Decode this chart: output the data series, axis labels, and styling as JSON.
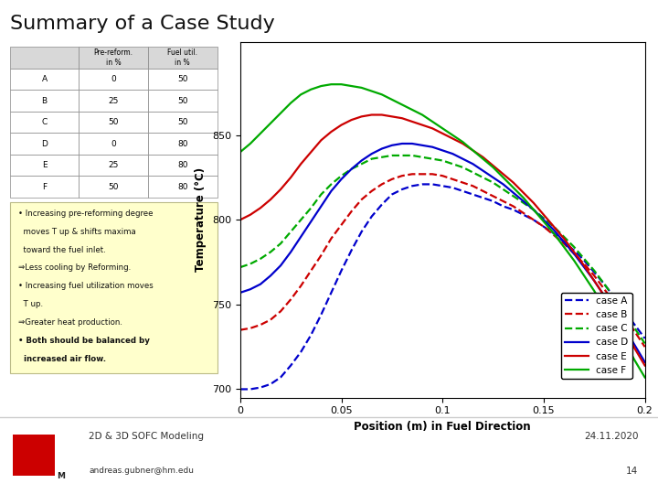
{
  "title": "Summary of a Case Study",
  "title_fontsize": 16,
  "background_color": "#ffffff",
  "slide_footer_left": "2D & 3D SOFC Modeling",
  "slide_footer_email": "andreas.gubner@hm.edu",
  "slide_footer_date": "24.11.2020",
  "slide_footer_page": "14",
  "table_rows": [
    [
      "A",
      "0",
      "50"
    ],
    [
      "B",
      "25",
      "50"
    ],
    [
      "C",
      "50",
      "50"
    ],
    [
      "D",
      "0",
      "80"
    ],
    [
      "E",
      "25",
      "80"
    ],
    [
      "F",
      "50",
      "80"
    ]
  ],
  "chart": {
    "xlabel": "Position (m) in Fuel Direction",
    "ylabel": "Temperature (°C)",
    "xlim": [
      0,
      0.2
    ],
    "ylim": [
      695,
      905
    ],
    "yticks": [
      700,
      750,
      800,
      850
    ],
    "xticks": [
      0,
      0.05,
      0.1,
      0.15,
      0.2
    ],
    "cases": [
      {
        "label": "case A",
        "color": "#0000cc",
        "linestyle": "--",
        "x": [
          0.0,
          0.005,
          0.01,
          0.015,
          0.02,
          0.025,
          0.03,
          0.035,
          0.04,
          0.045,
          0.05,
          0.055,
          0.06,
          0.065,
          0.07,
          0.075,
          0.08,
          0.085,
          0.09,
          0.095,
          0.1,
          0.105,
          0.11,
          0.115,
          0.12,
          0.125,
          0.13,
          0.135,
          0.14,
          0.145,
          0.15,
          0.155,
          0.16,
          0.165,
          0.17,
          0.175,
          0.18,
          0.185,
          0.19,
          0.195,
          0.2
        ],
        "y": [
          700,
          700,
          701,
          703,
          707,
          714,
          722,
          732,
          744,
          757,
          770,
          782,
          793,
          802,
          809,
          815,
          818,
          820,
          821,
          821,
          820,
          819,
          817,
          815,
          813,
          811,
          808,
          806,
          803,
          800,
          796,
          792,
          787,
          782,
          776,
          769,
          762,
          754,
          746,
          738,
          730
        ]
      },
      {
        "label": "case B",
        "color": "#cc0000",
        "linestyle": "--",
        "x": [
          0.0,
          0.005,
          0.01,
          0.015,
          0.02,
          0.025,
          0.03,
          0.035,
          0.04,
          0.045,
          0.05,
          0.055,
          0.06,
          0.065,
          0.07,
          0.075,
          0.08,
          0.085,
          0.09,
          0.095,
          0.1,
          0.105,
          0.11,
          0.115,
          0.12,
          0.125,
          0.13,
          0.135,
          0.14,
          0.145,
          0.15,
          0.155,
          0.16,
          0.165,
          0.17,
          0.175,
          0.18,
          0.185,
          0.19,
          0.195,
          0.2
        ],
        "y": [
          735,
          736,
          738,
          741,
          746,
          753,
          761,
          770,
          779,
          789,
          797,
          805,
          812,
          817,
          821,
          824,
          826,
          827,
          827,
          827,
          826,
          824,
          822,
          820,
          817,
          814,
          811,
          808,
          804,
          800,
          796,
          791,
          786,
          780,
          774,
          767,
          759,
          751,
          743,
          734,
          725
        ]
      },
      {
        "label": "case C",
        "color": "#00aa00",
        "linestyle": "--",
        "x": [
          0.0,
          0.005,
          0.01,
          0.015,
          0.02,
          0.025,
          0.03,
          0.035,
          0.04,
          0.045,
          0.05,
          0.055,
          0.06,
          0.065,
          0.07,
          0.075,
          0.08,
          0.085,
          0.09,
          0.095,
          0.1,
          0.105,
          0.11,
          0.115,
          0.12,
          0.125,
          0.13,
          0.135,
          0.14,
          0.145,
          0.15,
          0.155,
          0.16,
          0.165,
          0.17,
          0.175,
          0.18,
          0.185,
          0.19,
          0.195,
          0.2
        ],
        "y": [
          772,
          774,
          777,
          781,
          786,
          793,
          800,
          807,
          815,
          821,
          826,
          830,
          833,
          836,
          837,
          838,
          838,
          838,
          837,
          836,
          835,
          833,
          831,
          828,
          825,
          822,
          818,
          814,
          810,
          806,
          801,
          796,
          790,
          784,
          777,
          770,
          762,
          754,
          745,
          736,
          727
        ]
      },
      {
        "label": "case D",
        "color": "#0000cc",
        "linestyle": "-",
        "x": [
          0.0,
          0.005,
          0.01,
          0.015,
          0.02,
          0.025,
          0.03,
          0.035,
          0.04,
          0.045,
          0.05,
          0.055,
          0.06,
          0.065,
          0.07,
          0.075,
          0.08,
          0.085,
          0.09,
          0.095,
          0.1,
          0.105,
          0.11,
          0.115,
          0.12,
          0.125,
          0.13,
          0.135,
          0.14,
          0.145,
          0.15,
          0.155,
          0.16,
          0.165,
          0.17,
          0.175,
          0.18,
          0.185,
          0.19,
          0.195,
          0.2
        ],
        "y": [
          757,
          759,
          762,
          767,
          773,
          781,
          790,
          799,
          808,
          817,
          824,
          830,
          835,
          839,
          842,
          844,
          845,
          845,
          844,
          843,
          841,
          839,
          836,
          833,
          829,
          825,
          821,
          816,
          811,
          806,
          800,
          794,
          787,
          780,
          772,
          764,
          755,
          746,
          736,
          726,
          716
        ]
      },
      {
        "label": "case E",
        "color": "#cc0000",
        "linestyle": "-",
        "x": [
          0.0,
          0.005,
          0.01,
          0.015,
          0.02,
          0.025,
          0.03,
          0.035,
          0.04,
          0.045,
          0.05,
          0.055,
          0.06,
          0.065,
          0.07,
          0.075,
          0.08,
          0.085,
          0.09,
          0.095,
          0.1,
          0.105,
          0.11,
          0.115,
          0.12,
          0.125,
          0.13,
          0.135,
          0.14,
          0.145,
          0.15,
          0.155,
          0.16,
          0.165,
          0.17,
          0.175,
          0.18,
          0.185,
          0.19,
          0.195,
          0.2
        ],
        "y": [
          800,
          803,
          807,
          812,
          818,
          825,
          833,
          840,
          847,
          852,
          856,
          859,
          861,
          862,
          862,
          861,
          860,
          858,
          856,
          854,
          851,
          848,
          845,
          841,
          837,
          832,
          827,
          822,
          816,
          810,
          803,
          796,
          789,
          781,
          773,
          764,
          755,
          745,
          735,
          724,
          714
        ]
      },
      {
        "label": "case F",
        "color": "#00aa00",
        "linestyle": "-",
        "x": [
          0.0,
          0.005,
          0.01,
          0.015,
          0.02,
          0.025,
          0.03,
          0.035,
          0.04,
          0.045,
          0.05,
          0.055,
          0.06,
          0.065,
          0.07,
          0.075,
          0.08,
          0.085,
          0.09,
          0.095,
          0.1,
          0.105,
          0.11,
          0.115,
          0.12,
          0.125,
          0.13,
          0.135,
          0.14,
          0.145,
          0.15,
          0.155,
          0.16,
          0.165,
          0.17,
          0.175,
          0.18,
          0.185,
          0.19,
          0.195,
          0.2
        ],
        "y": [
          840,
          845,
          851,
          857,
          863,
          869,
          874,
          877,
          879,
          880,
          880,
          879,
          878,
          876,
          874,
          871,
          868,
          865,
          862,
          858,
          854,
          850,
          846,
          841,
          836,
          831,
          825,
          819,
          813,
          806,
          799,
          792,
          784,
          776,
          767,
          758,
          748,
          738,
          728,
          717,
          707
        ]
      }
    ]
  },
  "logo_color": "#cc0000"
}
